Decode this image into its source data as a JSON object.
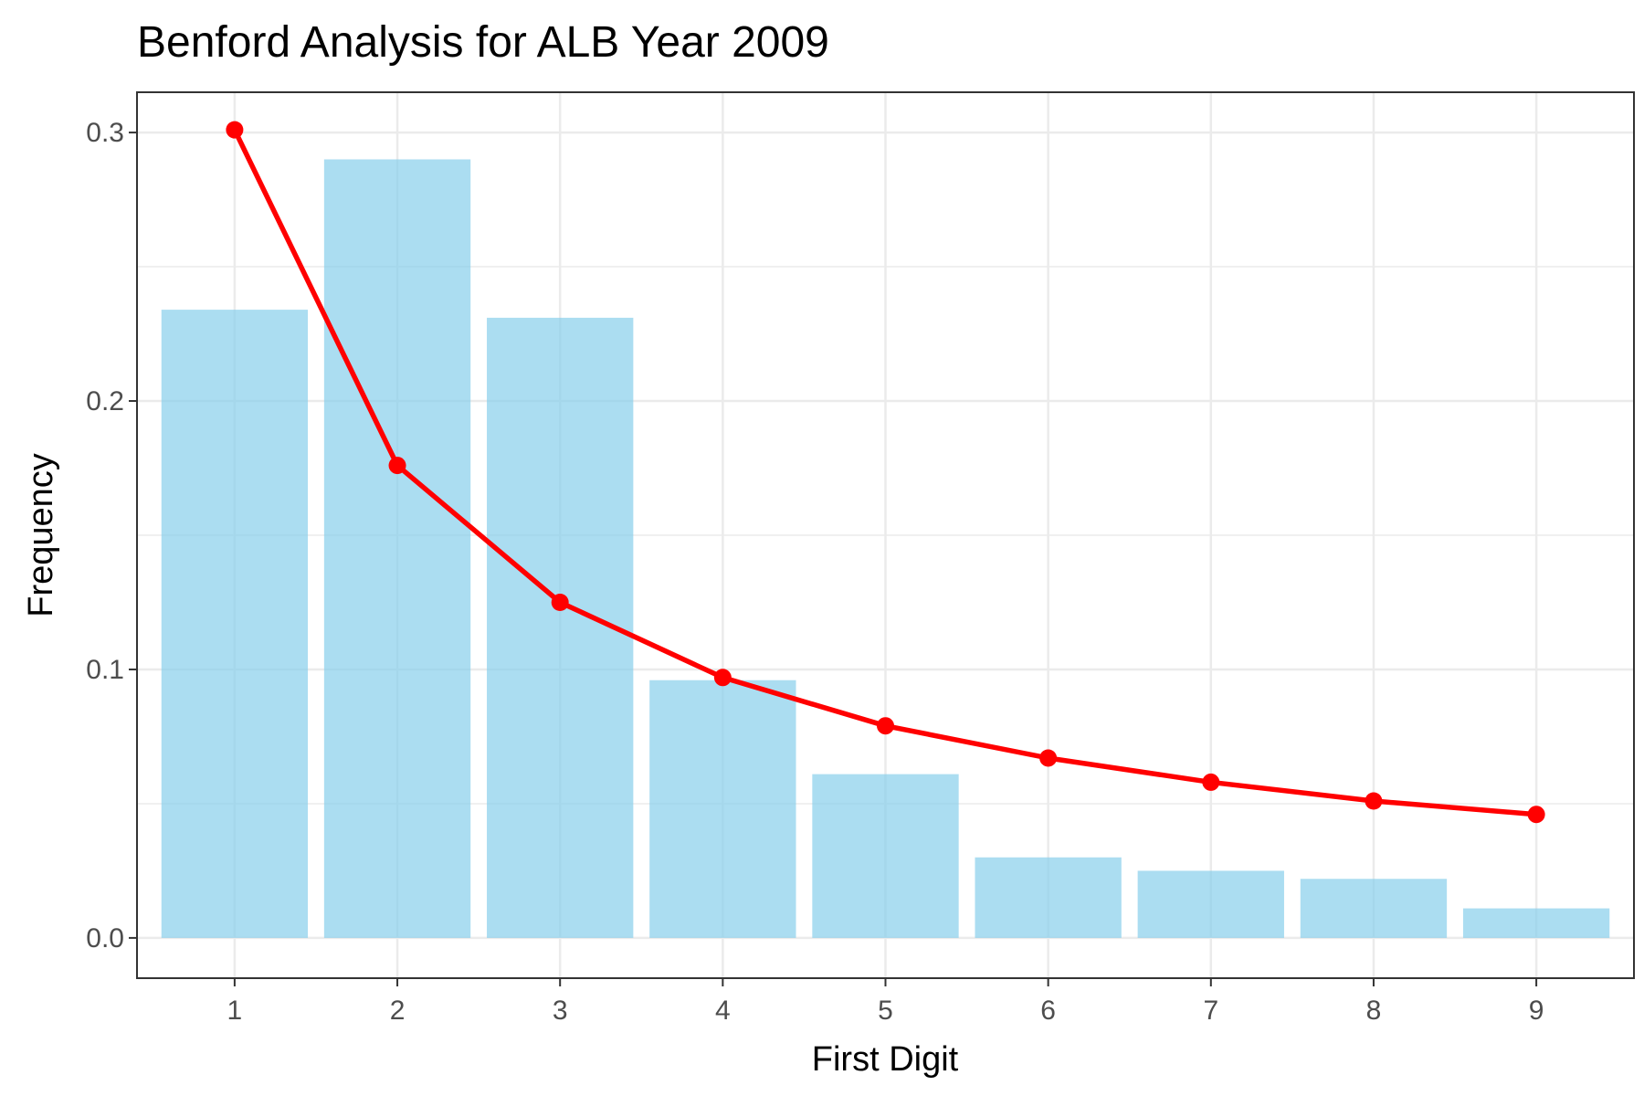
{
  "chart_data": {
    "type": "bar",
    "title": "Benford Analysis for ALB Year 2009",
    "xlabel": "First Digit",
    "ylabel": "Frequency",
    "categories": [
      "1",
      "2",
      "3",
      "4",
      "5",
      "6",
      "7",
      "8",
      "9"
    ],
    "series": [
      {
        "type": "bar",
        "values": [
          0.234,
          0.29,
          0.231,
          0.096,
          0.061,
          0.03,
          0.025,
          0.022,
          0.011
        ],
        "color": "#87CEEB"
      },
      {
        "type": "line",
        "values": [
          0.301,
          0.176,
          0.125,
          0.097,
          0.079,
          0.067,
          0.058,
          0.051,
          0.046
        ],
        "color": "#FF0000"
      }
    ],
    "ylim": [
      -0.015,
      0.315
    ],
    "yticks": [
      0.0,
      0.1,
      0.2,
      0.3
    ],
    "ytick_labels": [
      "0.0",
      "0.1",
      "0.2",
      "0.3"
    ],
    "grid": true,
    "legend": "none"
  }
}
